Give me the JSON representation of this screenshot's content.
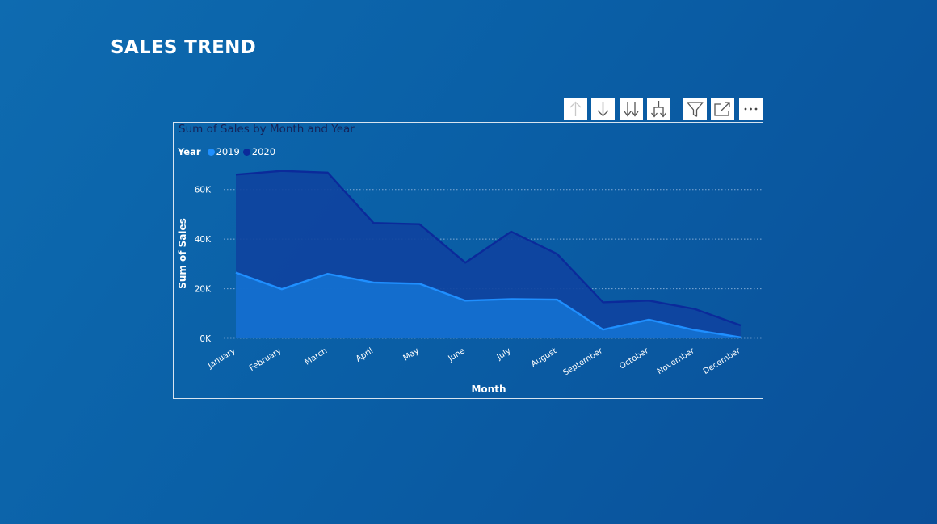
{
  "page": {
    "title": "SALES TREND"
  },
  "toolbar": {
    "buttons": [
      {
        "name": "drill-up-button",
        "icon": "arrow-up-icon"
      },
      {
        "name": "drill-down-button",
        "icon": "arrow-down-icon"
      },
      {
        "name": "next-level-button",
        "icon": "double-arrow-down-icon"
      },
      {
        "name": "expand-hierarchy-button",
        "icon": "fork-arrow-down-icon"
      },
      {
        "name": "filter-button",
        "icon": "funnel-icon"
      },
      {
        "name": "focus-mode-button",
        "icon": "expand-icon"
      },
      {
        "name": "more-options-button",
        "icon": "ellipsis-icon"
      }
    ]
  },
  "colors": {
    "series_2019_line": "#1f8fff",
    "series_2019_fill": "#1470d0",
    "series_2020_line": "#0b2a9a",
    "series_2020_fill": "#0f43a0",
    "gridline": "#8fb4dc",
    "text": "#ffffff",
    "title_text": "#15245a"
  },
  "chart_data": {
    "type": "area",
    "title": "Sum of Sales by Month and Year",
    "legend_title": "Year",
    "legend_position": "top-left",
    "xlabel": "Month",
    "ylabel": "Sum of Sales",
    "categories": [
      "January",
      "February",
      "March",
      "April",
      "May",
      "June",
      "July",
      "August",
      "September",
      "October",
      "November",
      "December"
    ],
    "series": [
      {
        "name": "2019",
        "values": [
          26500,
          19800,
          26000,
          22500,
          22000,
          15200,
          15800,
          15600,
          3500,
          7500,
          3300,
          400
        ]
      },
      {
        "name": "2020",
        "values": [
          66000,
          67500,
          66800,
          46500,
          46000,
          30500,
          43000,
          34000,
          14500,
          15200,
          11800,
          5200
        ]
      }
    ],
    "ylim": [
      0,
      70000
    ],
    "yticks": [
      {
        "value": 0,
        "label": "0K"
      },
      {
        "value": 20000,
        "label": "20K"
      },
      {
        "value": 40000,
        "label": "40K"
      },
      {
        "value": 60000,
        "label": "60K"
      }
    ],
    "grid": true
  }
}
